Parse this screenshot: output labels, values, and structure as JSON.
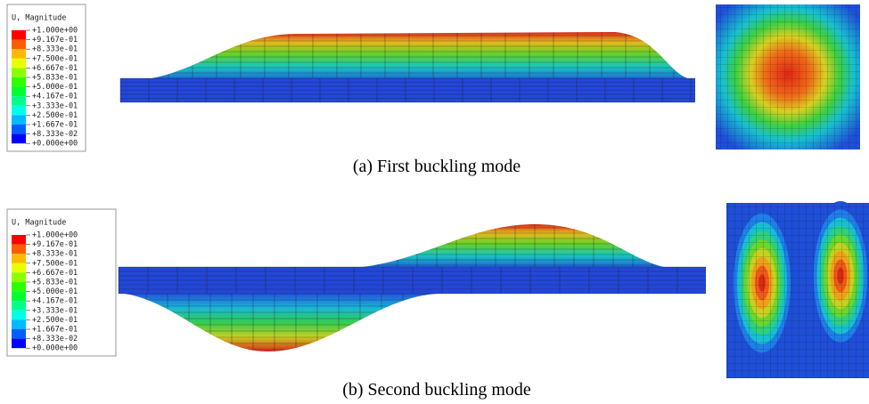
{
  "panels": [
    {
      "legend": {
        "title": "U, Magnitude",
        "labels": [
          "+1.000e+00",
          "+9.167e-01",
          "+8.333e-01",
          "+7.500e-01",
          "+6.667e-01",
          "+5.833e-01",
          "+5.000e-01",
          "+4.167e-01",
          "+3.333e-01",
          "+2.500e-01",
          "+1.667e-01",
          "+8.333e-02",
          "+0.000e+00"
        ]
      },
      "caption": "(a) First buckling mode"
    },
    {
      "legend": {
        "title": "U, Magnitude",
        "labels": [
          "+1.000e+00",
          "+9.167e-01",
          "+8.333e-01",
          "+7.500e-01",
          "+6.667e-01",
          "+5.833e-01",
          "+5.000e-01",
          "+4.167e-01",
          "+3.333e-01",
          "+2.500e-01",
          "+1.667e-01",
          "+8.333e-02",
          "+0.000e+00"
        ]
      },
      "caption": "(b) Second buckling mode"
    }
  ]
}
